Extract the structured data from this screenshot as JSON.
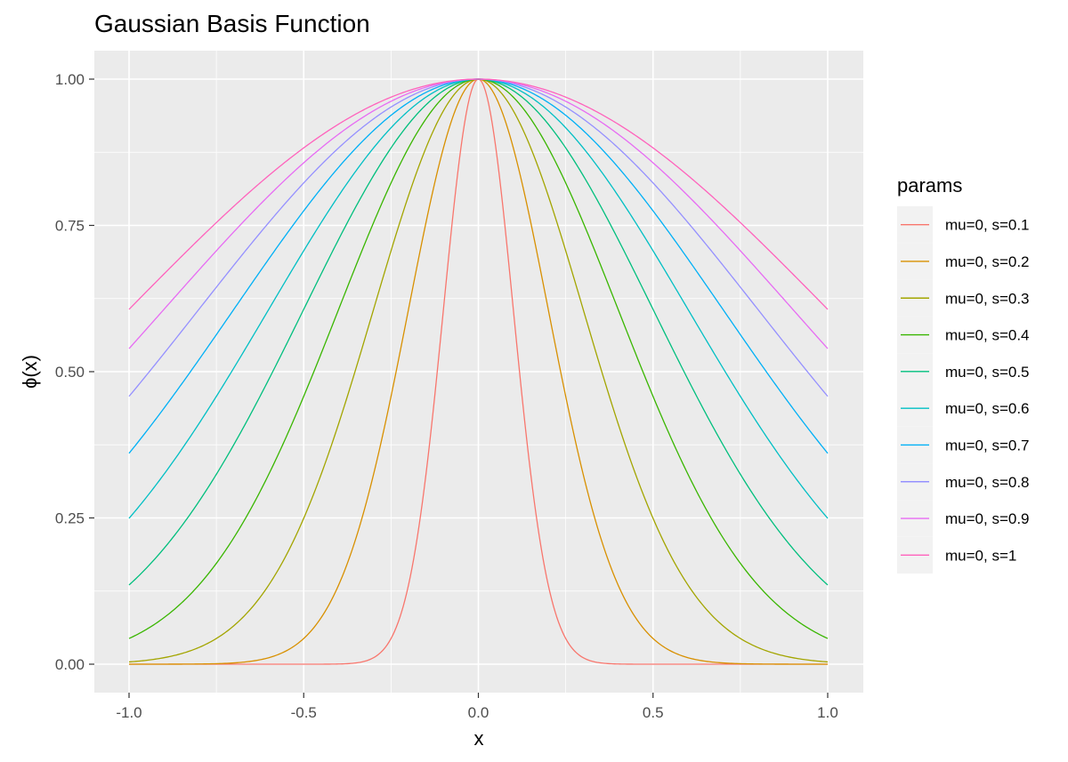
{
  "chart_data": {
    "type": "line",
    "title": "Gaussian Basis Function",
    "xlabel": "x",
    "ylabel": "ϕ(x)",
    "xlim": [
      -1.0,
      1.0
    ],
    "ylim": [
      0.0,
      1.0
    ],
    "x_ticks": [
      -1.0,
      -0.5,
      0.0,
      0.5,
      1.0
    ],
    "x_tick_labels": [
      "-1.0",
      "-0.5",
      "0.0",
      "0.5",
      "1.0"
    ],
    "y_ticks": [
      0.0,
      0.25,
      0.5,
      0.75,
      1.0
    ],
    "y_tick_labels": [
      "0.00",
      "0.25",
      "0.50",
      "0.75",
      "1.00"
    ],
    "grid": true,
    "legend_position": "right",
    "legend_title": "params",
    "function": "exp(-(x-mu)^2 / (2*s^2))",
    "series": [
      {
        "name": "mu=0, s=0.1",
        "mu": 0,
        "s": 0.1,
        "color": "#F8766D"
      },
      {
        "name": "mu=0, s=0.2",
        "mu": 0,
        "s": 0.2,
        "color": "#D89000"
      },
      {
        "name": "mu=0, s=0.3",
        "mu": 0,
        "s": 0.3,
        "color": "#A3A500"
      },
      {
        "name": "mu=0, s=0.4",
        "mu": 0,
        "s": 0.4,
        "color": "#39B600"
      },
      {
        "name": "mu=0, s=0.5",
        "mu": 0,
        "s": 0.5,
        "color": "#00BF7D"
      },
      {
        "name": "mu=0, s=0.6",
        "mu": 0,
        "s": 0.6,
        "color": "#00BFC4"
      },
      {
        "name": "mu=0, s=0.7",
        "mu": 0,
        "s": 0.7,
        "color": "#00B0F6"
      },
      {
        "name": "mu=0, s=0.8",
        "mu": 0,
        "s": 0.8,
        "color": "#9590FF"
      },
      {
        "name": "mu=0, s=0.9",
        "mu": 0,
        "s": 0.9,
        "color": "#E76BF3"
      },
      {
        "name": "mu=0, s=1",
        "mu": 0,
        "s": 1.0,
        "color": "#FF62BC"
      }
    ],
    "background_color": "#EBEBEB",
    "grid_color": "#FFFFFF"
  }
}
